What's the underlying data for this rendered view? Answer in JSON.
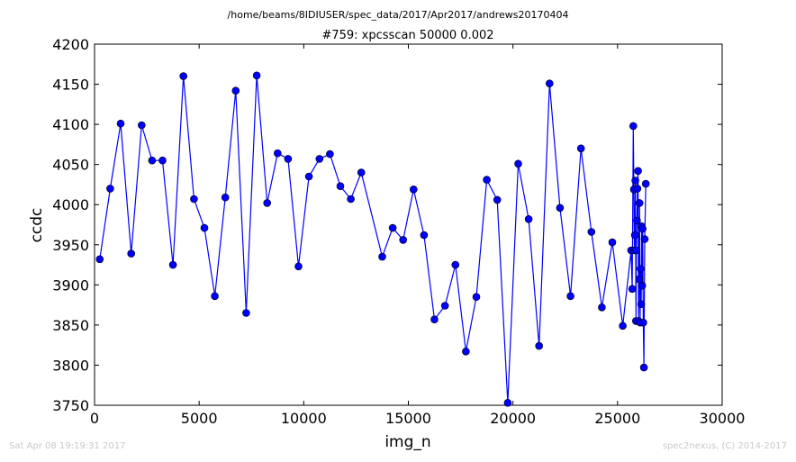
{
  "figure": {
    "suptitle": "/home/beams/8IDIUSER/spec_data/2017/Apr2017/andrews20170404",
    "footer_left": "Sat Apr 08 19:19:31 2017",
    "footer_right": "spec2nexus, (C) 2014-2017"
  },
  "chart_data": {
    "type": "line",
    "title": "#759: xpcsscan 50000 0.002",
    "xlabel": "img_n",
    "ylabel": "ccdc",
    "xlim": [
      0,
      30000
    ],
    "ylim": [
      3750,
      4200
    ],
    "xticks": [
      0,
      5000,
      10000,
      15000,
      20000,
      25000,
      30000
    ],
    "yticks": [
      3750,
      3800,
      3850,
      3900,
      3950,
      4000,
      4050,
      4100,
      4150,
      4200
    ],
    "grid": false,
    "marker": "circle",
    "color": "#0000ff",
    "series": [
      {
        "x": [
          250,
          750,
          1250,
          1750,
          2250,
          2750,
          3250,
          3750,
          4250,
          4750,
          5250,
          5750,
          6250,
          6750,
          7250,
          7750,
          8250,
          8750,
          9250,
          9750,
          10250,
          10750,
          11250,
          11750,
          12250,
          12750,
          13750,
          14250,
          14750,
          15250,
          15750,
          16250,
          16750,
          17250,
          17750,
          18250,
          18750,
          19250,
          19750,
          20250,
          20750,
          21250,
          21750,
          22250,
          22750,
          23250,
          23750,
          24250,
          24750,
          25250,
          25650,
          25700,
          25750,
          25780,
          25800,
          25830,
          25850,
          25880,
          25900,
          25930,
          25950,
          25980,
          26000,
          26030,
          26050,
          26080,
          26100,
          26130,
          26150,
          26180,
          26200,
          26230,
          26260,
          26300,
          26350
        ],
        "y": [
          3932,
          4020,
          4101,
          3939,
          4099,
          4055,
          4055,
          3925,
          4160,
          4007,
          3971,
          3886,
          4009,
          4142,
          3865,
          4161,
          4002,
          4064,
          4057,
          3923,
          4035,
          4057,
          4063,
          4023,
          4007,
          4040,
          3935,
          3971,
          3956,
          4019,
          3962,
          3857,
          3874,
          3925,
          3817,
          3885,
          4031,
          4006,
          3753,
          4051,
          3982,
          3824,
          4151,
          3996,
          3886,
          4070,
          3966,
          3872,
          3953,
          3849,
          3943,
          3895,
          4098,
          4019,
          3943,
          3962,
          4030,
          3855,
          3943,
          3980,
          4020,
          4042,
          3855,
          3907,
          4002,
          3853,
          3920,
          3876,
          3973,
          3899,
          3970,
          3853,
          3797,
          3957,
          4026
        ]
      }
    ]
  }
}
